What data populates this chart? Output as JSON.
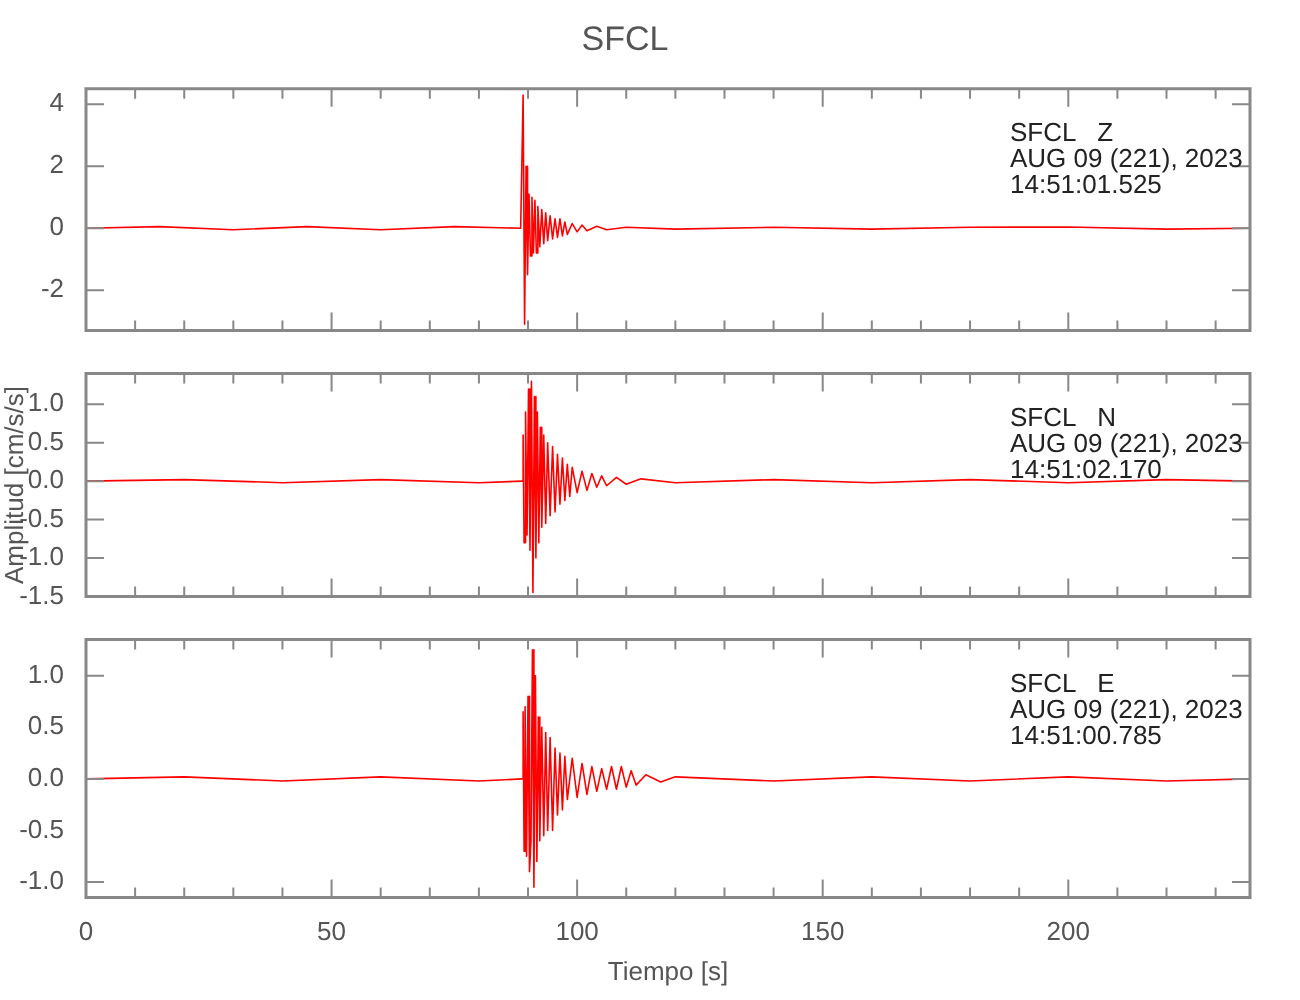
{
  "chart_data": [
    {
      "type": "line",
      "title": "SFCL",
      "annotations": [
        "SFCL   Z",
        "AUG 09 (221), 2023",
        "14:51:01.525"
      ],
      "tick_labels": "y",
      "xlim": [
        0,
        237
      ],
      "xticks": [
        0,
        {
          "value": 10,
          "label": null
        },
        {
          "value": 20,
          "label": null
        },
        {
          "value": 30,
          "label": null
        },
        {
          "value": 40,
          "label": null
        },
        50,
        {
          "value": 60,
          "label": null
        },
        {
          "value": 70,
          "label": null
        },
        {
          "value": 80,
          "label": null
        },
        {
          "value": 90,
          "label": null
        },
        100,
        {
          "value": 110,
          "label": null
        },
        {
          "value": 120,
          "label": null
        },
        {
          "value": 130,
          "label": null
        },
        {
          "value": 140,
          "label": null
        },
        150,
        {
          "value": 160,
          "label": null
        },
        {
          "value": 170,
          "label": null
        },
        {
          "value": 180,
          "label": null
        },
        {
          "value": 190,
          "label": null
        },
        200,
        {
          "value": 210,
          "label": null
        },
        {
          "value": 220,
          "label": null
        },
        {
          "value": 230,
          "label": null
        }
      ],
      "ylim": [
        -3.3,
        4.5
      ],
      "yticks": [
        -2,
        0,
        2,
        4
      ],
      "x": [
        0,
        15,
        30,
        45,
        60,
        75,
        88.5,
        89,
        89.3,
        89.6,
        89.9,
        90.2,
        90.5,
        90.8,
        91.1,
        91.4,
        91.7,
        92,
        92.4,
        92.8,
        93.2,
        93.6,
        94,
        94.5,
        95,
        95.5,
        96,
        96.5,
        97,
        97.5,
        98,
        99,
        100,
        101,
        102,
        104,
        106,
        110,
        120,
        140,
        160,
        180,
        200,
        220,
        237
      ],
      "series": [
        {
          "color": "#ff0000",
          "values": [
            0,
            0.05,
            -0.05,
            0.05,
            -0.05,
            0.05,
            0,
            4.3,
            -3.1,
            2.0,
            -1.5,
            1.1,
            -0.9,
            1.0,
            -0.8,
            0.9,
            -0.8,
            0.7,
            -0.6,
            0.6,
            -0.5,
            0.5,
            -0.4,
            0.4,
            -0.35,
            0.3,
            -0.3,
            0.3,
            -0.25,
            0.2,
            -0.2,
            0.15,
            -0.12,
            0.1,
            -0.08,
            0.06,
            -0.05,
            0.03,
            -0.03,
            0.03,
            -0.03,
            0.03,
            0.04,
            -0.03,
            0
          ]
        }
      ]
    },
    {
      "type": "line",
      "ylabel": "Amplitud [cm/s/s]",
      "annotations": [
        "SFCL   N",
        "AUG 09 (221), 2023",
        "14:51:02.170"
      ],
      "tick_labels": "y",
      "xlim": [
        0,
        237
      ],
      "xticks": [
        0,
        {
          "value": 10,
          "label": null
        },
        {
          "value": 20,
          "label": null
        },
        {
          "value": 30,
          "label": null
        },
        {
          "value": 40,
          "label": null
        },
        50,
        {
          "value": 60,
          "label": null
        },
        {
          "value": 70,
          "label": null
        },
        {
          "value": 80,
          "label": null
        },
        {
          "value": 90,
          "label": null
        },
        100,
        {
          "value": 110,
          "label": null
        },
        {
          "value": 120,
          "label": null
        },
        {
          "value": 130,
          "label": null
        },
        {
          "value": 140,
          "label": null
        },
        150,
        {
          "value": 160,
          "label": null
        },
        {
          "value": 170,
          "label": null
        },
        {
          "value": 180,
          "label": null
        },
        {
          "value": 190,
          "label": null
        },
        200,
        {
          "value": 210,
          "label": null
        },
        {
          "value": 220,
          "label": null
        },
        {
          "value": 230,
          "label": null
        }
      ],
      "ylim": [
        -1.5,
        1.4
      ],
      "yticks": [
        -1.5,
        {
          "value": -1,
          "label": "-1.0"
        },
        -0.5,
        {
          "value": 0,
          "label": "0.0"
        },
        0.5,
        {
          "value": 1,
          "label": "1.0"
        }
      ],
      "x": [
        0,
        20,
        40,
        60,
        80,
        88.8,
        89,
        89.2,
        89.5,
        89.8,
        90.1,
        90.4,
        90.7,
        91,
        91.3,
        91.6,
        91.9,
        92.2,
        92.5,
        92.8,
        93.2,
        93.6,
        94,
        94.5,
        95,
        95.5,
        96,
        96.5,
        97,
        97.5,
        98,
        98.5,
        99,
        100,
        101,
        102,
        103,
        104,
        105,
        106,
        108,
        110,
        113,
        120,
        140,
        160,
        180,
        200,
        220,
        237
      ],
      "series": [
        {
          "color": "#ff0000",
          "values": [
            0,
            0.02,
            -0.02,
            0.02,
            -0.02,
            0,
            0.6,
            -0.8,
            0.9,
            -0.7,
            1.2,
            -0.9,
            1.3,
            -1.45,
            1.1,
            -1.0,
            0.9,
            -0.8,
            0.7,
            -0.6,
            0.6,
            -0.55,
            0.5,
            -0.45,
            0.45,
            -0.4,
            0.35,
            -0.3,
            0.3,
            -0.25,
            0.22,
            -0.2,
            0.18,
            -0.15,
            0.13,
            -0.12,
            0.1,
            -0.08,
            0.07,
            -0.06,
            0.05,
            -0.04,
            0.03,
            -0.02,
            0.02,
            -0.02,
            0.02,
            -0.02,
            0.02,
            0
          ]
        }
      ]
    },
    {
      "type": "line",
      "xlabel": "Tiempo [s]",
      "annotations": [
        "SFCL   E",
        "AUG 09 (221), 2023",
        "14:51:00.785"
      ],
      "xlim": [
        0,
        237
      ],
      "xticks": [
        0,
        {
          "value": 10,
          "label": null
        },
        {
          "value": 20,
          "label": null
        },
        {
          "value": 30,
          "label": null
        },
        {
          "value": 40,
          "label": null
        },
        50,
        {
          "value": 60,
          "label": null
        },
        {
          "value": 70,
          "label": null
        },
        {
          "value": 80,
          "label": null
        },
        {
          "value": 90,
          "label": null
        },
        100,
        {
          "value": 110,
          "label": null
        },
        {
          "value": 120,
          "label": null
        },
        {
          "value": 130,
          "label": null
        },
        {
          "value": 140,
          "label": null
        },
        150,
        {
          "value": 160,
          "label": null
        },
        {
          "value": 170,
          "label": null
        },
        {
          "value": 180,
          "label": null
        },
        {
          "value": 190,
          "label": null
        },
        200,
        {
          "value": 210,
          "label": null
        },
        {
          "value": 220,
          "label": null
        },
        {
          "value": 230,
          "label": null
        }
      ],
      "ylim": [
        -1.15,
        1.35
      ],
      "yticks": [
        {
          "value": -1,
          "label": "-1.0"
        },
        -0.5,
        {
          "value": 0,
          "label": "0.0"
        },
        0.5,
        {
          "value": 1,
          "label": "1.0"
        }
      ],
      "x": [
        0,
        20,
        40,
        60,
        80,
        88.8,
        89,
        89.2,
        89.4,
        89.7,
        90,
        90.3,
        90.6,
        90.9,
        91.2,
        91.5,
        91.8,
        92.1,
        92.4,
        92.8,
        93.2,
        93.6,
        94,
        94.5,
        95,
        95.5,
        96,
        96.5,
        97,
        97.5,
        98,
        99,
        100,
        101,
        102,
        103,
        104,
        105,
        106,
        107,
        108,
        109,
        110,
        111,
        112,
        114,
        117,
        120,
        140,
        160,
        180,
        200,
        220,
        237
      ],
      "series": [
        {
          "color": "#ff0000",
          "values": [
            0,
            0.02,
            -0.02,
            0.02,
            -0.02,
            0,
            0.65,
            -0.7,
            0.7,
            -0.75,
            0.8,
            -0.9,
            -0.6,
            1.25,
            -1.05,
            1.0,
            -0.8,
            0.6,
            -0.6,
            0.5,
            -0.55,
            0.45,
            -0.5,
            0.4,
            -0.5,
            0.3,
            -0.35,
            0.25,
            -0.3,
            0.22,
            -0.2,
            0.2,
            -0.18,
            0.15,
            -0.15,
            0.12,
            -0.12,
            0.1,
            -0.1,
            0.12,
            -0.1,
            0.12,
            -0.08,
            0.08,
            -0.06,
            0.04,
            -0.03,
            0.02,
            -0.02,
            0.02,
            -0.02,
            0.02,
            -0.02,
            0
          ]
        }
      ]
    }
  ]
}
